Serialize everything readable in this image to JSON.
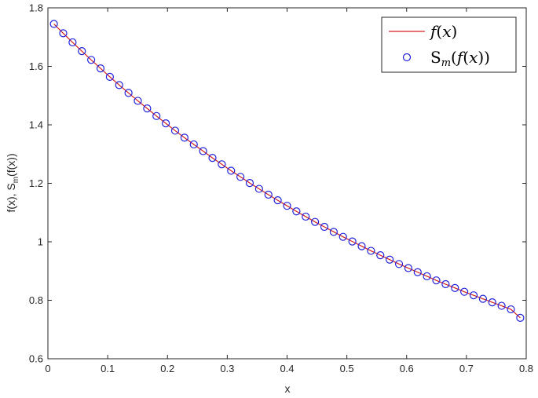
{
  "chart_data": {
    "type": "line",
    "title": "",
    "xlabel": "x",
    "ylabel": "f(x), S",
    "ylabel_sub": "m",
    "ylabel_tail": "(f(x))",
    "xlim": [
      0,
      0.8
    ],
    "ylim": [
      0.6,
      1.8
    ],
    "x_ticks": [
      "0",
      "0.1",
      "0.2",
      "0.3",
      "0.4",
      "0.5",
      "0.6",
      "0.7",
      "0.8"
    ],
    "y_ticks": [
      "0.6",
      "0.8",
      "1",
      "1.2",
      "1.4",
      "1.6",
      "1.8"
    ],
    "grid": false,
    "legend_position": "top-right",
    "x": [
      0.01,
      0.0256,
      0.0412,
      0.0568,
      0.0724,
      0.088,
      0.1036,
      0.1192,
      0.1348,
      0.1504,
      0.166,
      0.1816,
      0.1972,
      0.2128,
      0.2284,
      0.244,
      0.2596,
      0.2752,
      0.2908,
      0.3064,
      0.322,
      0.3376,
      0.3532,
      0.3688,
      0.3844,
      0.4,
      0.4156,
      0.4312,
      0.4468,
      0.4624,
      0.478,
      0.4936,
      0.5092,
      0.5248,
      0.5404,
      0.556,
      0.5716,
      0.5872,
      0.6028,
      0.6184,
      0.634,
      0.6496,
      0.6652,
      0.6808,
      0.6964,
      0.712,
      0.7276,
      0.7432,
      0.7588,
      0.7744,
      0.79
    ],
    "series": [
      {
        "name": "f(x)",
        "style": "line",
        "color": "#d62020",
        "values": [
          1.745,
          1.713,
          1.682,
          1.652,
          1.622,
          1.593,
          1.564,
          1.536,
          1.509,
          1.482,
          1.456,
          1.43,
          1.405,
          1.38,
          1.356,
          1.333,
          1.31,
          1.287,
          1.265,
          1.243,
          1.222,
          1.201,
          1.181,
          1.161,
          1.142,
          1.123,
          1.104,
          1.086,
          1.068,
          1.051,
          1.034,
          1.017,
          1.001,
          0.985,
          0.969,
          0.954,
          0.939,
          0.924,
          0.91,
          0.896,
          0.882,
          0.868,
          0.855,
          0.842,
          0.829,
          0.817,
          0.805,
          0.793,
          0.781,
          0.769,
          0.74
        ]
      },
      {
        "name": "S_m(f(x))",
        "style": "markers",
        "color": "#2222dd",
        "values": [
          1.745,
          1.713,
          1.682,
          1.652,
          1.622,
          1.593,
          1.564,
          1.536,
          1.509,
          1.482,
          1.456,
          1.43,
          1.405,
          1.38,
          1.356,
          1.333,
          1.31,
          1.287,
          1.265,
          1.243,
          1.222,
          1.201,
          1.181,
          1.161,
          1.142,
          1.123,
          1.104,
          1.086,
          1.068,
          1.051,
          1.034,
          1.017,
          1.001,
          0.985,
          0.969,
          0.954,
          0.939,
          0.924,
          0.91,
          0.896,
          0.882,
          0.868,
          0.855,
          0.842,
          0.829,
          0.817,
          0.805,
          0.793,
          0.781,
          0.769,
          0.74
        ]
      }
    ]
  },
  "legend": {
    "line_entry": {
      "f": "f",
      "open": "(",
      "x": "x",
      "close": ")"
    },
    "marker_entry": {
      "S": "S",
      "sub": "m",
      "open": "(",
      "f": "f",
      "open2": "(",
      "x": "x",
      "close": "))"
    }
  }
}
